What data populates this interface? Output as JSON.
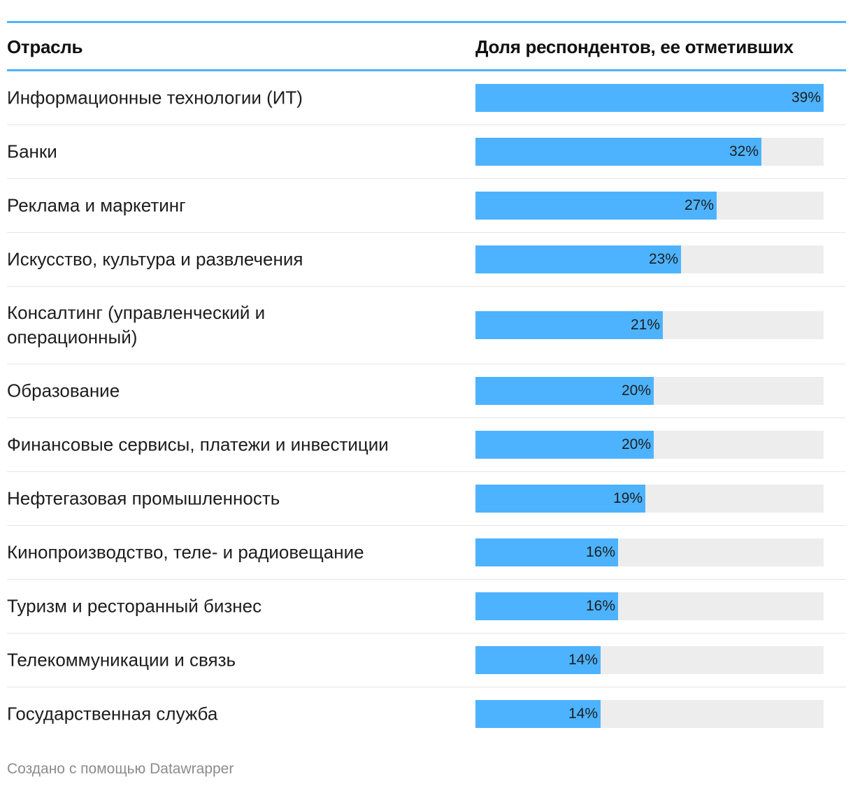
{
  "chart_data": {
    "type": "bar",
    "orientation": "horizontal",
    "header": {
      "category_label": "Отрасль",
      "value_label": "Доля респондентов, ее отметивших"
    },
    "unit": "%",
    "xlim": [
      0,
      39
    ],
    "rows": [
      {
        "label": "Информационные технологии (ИТ)",
        "value": 39,
        "value_label": "39%"
      },
      {
        "label": "Банки",
        "value": 32,
        "value_label": "32%"
      },
      {
        "label": "Реклама и маркетинг",
        "value": 27,
        "value_label": "27%"
      },
      {
        "label": "Искусство, культура и развлечения",
        "value": 23,
        "value_label": "23%"
      },
      {
        "label": "Консалтинг (управленческий и операционный)",
        "value": 21,
        "value_label": "21%"
      },
      {
        "label": "Образование",
        "value": 20,
        "value_label": "20%"
      },
      {
        "label": "Финансовые сервисы, платежи и инвестиции",
        "value": 20,
        "value_label": "20%"
      },
      {
        "label": "Нефтегазовая промышленность",
        "value": 19,
        "value_label": "19%"
      },
      {
        "label": "Кинопроизводство, теле- и радиовещание",
        "value": 16,
        "value_label": "16%"
      },
      {
        "label": "Туризм и ресторанный бизнес",
        "value": 16,
        "value_label": "16%"
      },
      {
        "label": "Телекоммуникации и связь",
        "value": 14,
        "value_label": "14%"
      },
      {
        "label": "Государственная служба",
        "value": 14,
        "value_label": "14%"
      }
    ],
    "colors": {
      "bar": "#4db3ff",
      "track": "#ededed",
      "rule": "#4db3ff"
    }
  },
  "footer": {
    "credit": "Создано с помощью Datawrapper"
  }
}
